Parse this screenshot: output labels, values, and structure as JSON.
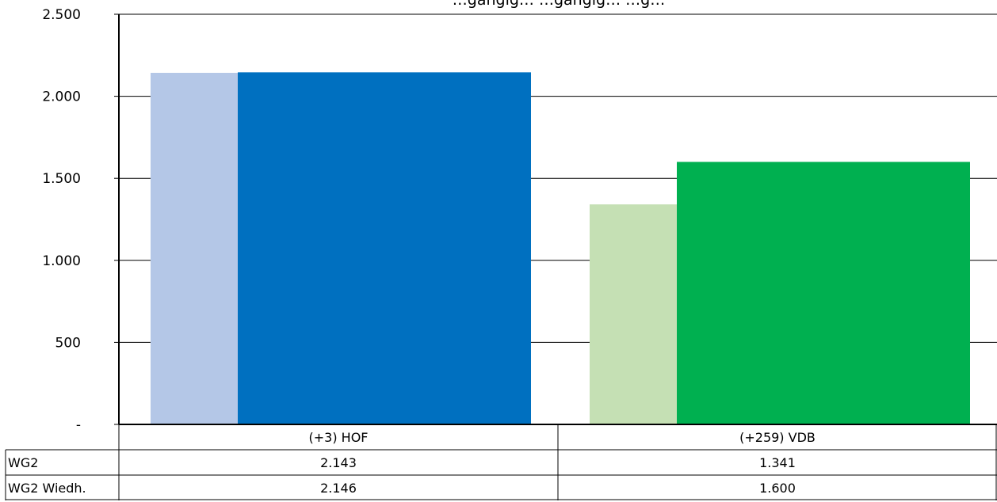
{
  "chart_data": {
    "type": "bar",
    "title": "…gängig… …gängig… …g…",
    "categories": [
      "(+3) HOF",
      "(+259) VDB"
    ],
    "series": [
      {
        "name": "WG2",
        "values": [
          2143,
          1341
        ],
        "value_labels": [
          "2.143",
          "1.341"
        ],
        "colors": [
          "#b4c7e7",
          "#c5e0b4"
        ]
      },
      {
        "name": "WG2 Wiedh.",
        "values": [
          2146,
          1600
        ],
        "value_labels": [
          "2.146",
          "1.600"
        ],
        "colors": [
          "#0070c0",
          "#00b050"
        ]
      }
    ],
    "y_ticks": [
      {
        "value": 0,
        "label": "-"
      },
      {
        "value": 500,
        "label": "500"
      },
      {
        "value": 1000,
        "label": "1.000"
      },
      {
        "value": 1500,
        "label": "1.500"
      },
      {
        "value": 2000,
        "label": "2.000"
      },
      {
        "value": 2500,
        "label": "2.500"
      }
    ],
    "ylim": [
      0,
      2500
    ],
    "grid": true,
    "legend": "data-table-below"
  }
}
